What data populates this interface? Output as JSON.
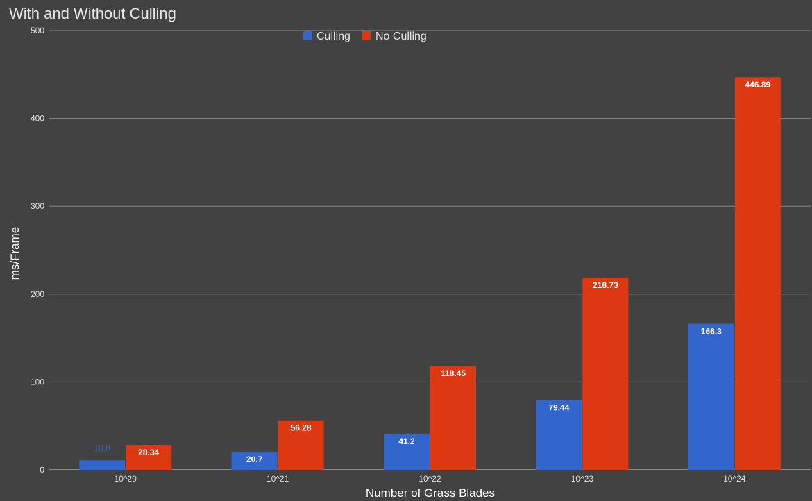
{
  "chart_data": {
    "type": "bar",
    "title": "With and Without Culling",
    "xlabel": "Number of Grass Blades",
    "ylabel": "ms/Frame",
    "categories": [
      "10^20",
      "10^21",
      "10^22",
      "10^23",
      "10^24"
    ],
    "series": [
      {
        "name": "Culling",
        "color": "#3366cc",
        "values": [
          10.8,
          20.7,
          41.2,
          79.44,
          166.3
        ]
      },
      {
        "name": "No Culling",
        "color": "#dc3912",
        "values": [
          28.34,
          56.28,
          118.45,
          218.73,
          446.89
        ]
      }
    ],
    "ylim": [
      0,
      500
    ],
    "yticks": [
      0,
      100,
      200,
      300,
      400,
      500
    ],
    "grid": true,
    "legend": "top-center",
    "background": "#424242",
    "gridColor": "#8a8a8a"
  }
}
